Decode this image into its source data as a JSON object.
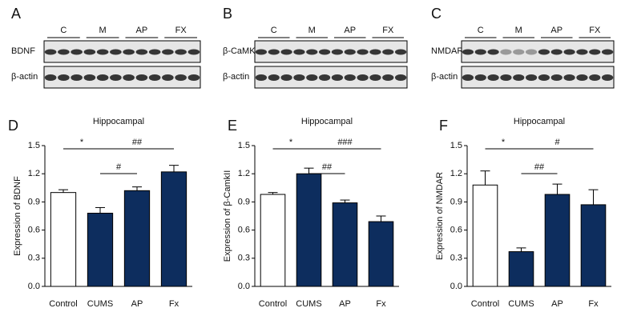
{
  "blots": [
    {
      "panel": "A",
      "groups": [
        "C",
        "M",
        "AP",
        "FX"
      ],
      "rows": [
        "BDNF",
        "β-actin"
      ]
    },
    {
      "panel": "B",
      "groups": [
        "C",
        "M",
        "AP",
        "FX"
      ],
      "rows": [
        "β-CaMKII",
        "β-actin"
      ]
    },
    {
      "panel": "C",
      "groups": [
        "C",
        "M",
        "AP",
        "FX"
      ],
      "rows": [
        "NMDAR",
        "β-actin"
      ]
    }
  ],
  "chart_data": [
    {
      "type": "bar",
      "panel": "D",
      "title": "Hippocampal",
      "ylabel": "Expression of BDNF",
      "categories": [
        "Control",
        "CUMS",
        "AP",
        "Fx"
      ],
      "values": [
        1.0,
        0.78,
        1.02,
        1.22
      ],
      "errors": [
        0.03,
        0.06,
        0.04,
        0.07
      ],
      "colors": [
        "#ffffff",
        "#0d2d5e",
        "#0d2d5e",
        "#0d2d5e"
      ],
      "ylim": [
        0,
        1.5
      ],
      "yticks": [
        {
          "value": 0,
          "label": "0.0"
        },
        0.3,
        0.6,
        0.9,
        1.2,
        1.5
      ],
      "annotations": [
        {
          "label": "*",
          "between": [
            0,
            1
          ]
        },
        {
          "label": "##",
          "between": [
            1,
            3
          ]
        },
        {
          "label": "#",
          "between": [
            1,
            2
          ]
        }
      ]
    },
    {
      "type": "bar",
      "panel": "E",
      "title": "Hippocampal",
      "ylabel": "Expression of β-CamkII",
      "categories": [
        "Control",
        "CUMS",
        "AP",
        "Fx"
      ],
      "values": [
        0.98,
        1.2,
        0.89,
        0.69
      ],
      "errors": [
        0.02,
        0.06,
        0.03,
        0.06
      ],
      "colors": [
        "#ffffff",
        "#0d2d5e",
        "#0d2d5e",
        "#0d2d5e"
      ],
      "ylim": [
        0,
        1.5
      ],
      "yticks": [
        {
          "value": 0,
          "label": "0.0"
        },
        0.3,
        0.6,
        0.9,
        1.2,
        1.5
      ],
      "annotations": [
        {
          "label": "*",
          "between": [
            0,
            1
          ]
        },
        {
          "label": "###",
          "between": [
            1,
            3
          ]
        },
        {
          "label": "##",
          "between": [
            1,
            2
          ]
        }
      ]
    },
    {
      "type": "bar",
      "panel": "F",
      "title": "Hippocampal",
      "ylabel": "Expression of NMDAR",
      "categories": [
        "Control",
        "CUMS",
        "AP",
        "Fx"
      ],
      "values": [
        1.08,
        0.37,
        0.98,
        0.87
      ],
      "errors": [
        0.15,
        0.04,
        0.11,
        0.16
      ],
      "colors": [
        "#ffffff",
        "#0d2d5e",
        "#0d2d5e",
        "#0d2d5e"
      ],
      "ylim": [
        0,
        1.5
      ],
      "yticks": [
        {
          "value": 0,
          "label": "0.0"
        },
        0.3,
        0.6,
        0.9,
        1.2,
        1.5
      ],
      "annotations": [
        {
          "label": "*",
          "between": [
            0,
            1
          ]
        },
        {
          "label": "#",
          "between": [
            1,
            3
          ]
        },
        {
          "label": "##",
          "between": [
            1,
            2
          ]
        }
      ]
    }
  ]
}
